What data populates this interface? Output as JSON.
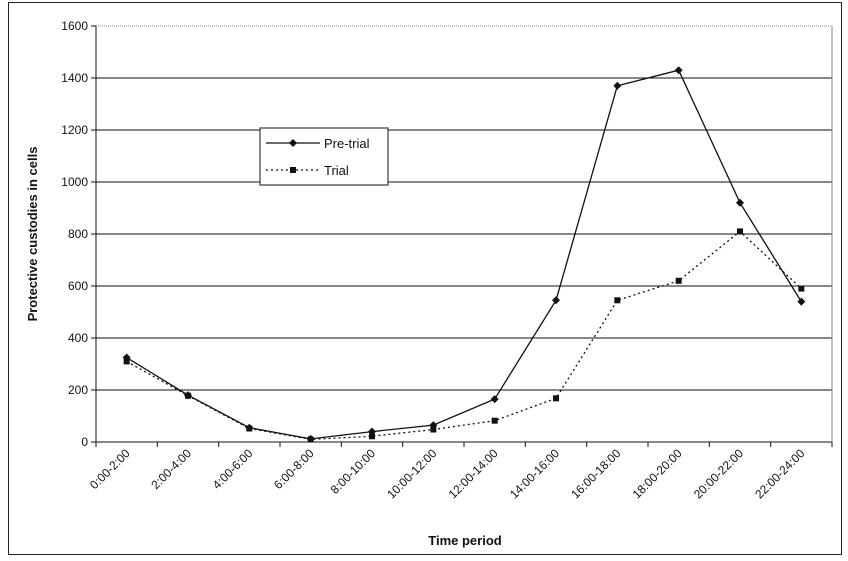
{
  "chart_data": {
    "type": "line",
    "title": "",
    "xlabel": "Time period",
    "ylabel": "Protective custodies in cells",
    "ylim": [
      0,
      1600
    ],
    "yticks": [
      0,
      200,
      400,
      600,
      800,
      1000,
      1200,
      1400,
      1600
    ],
    "ytick_labels": [
      "0",
      "200",
      "400",
      "600",
      "800",
      "1000",
      "1200",
      "1400",
      "1600"
    ],
    "grid": true,
    "legend_position": "upper-left-center",
    "categories": [
      "0:00-2:00",
      "2:00-4:00",
      "4:00-6:00",
      "6:00-8:00",
      "8:00-10:00",
      "10:00-12:00",
      "12:00-14:00",
      "14:00-16:00",
      "16:00-18:00",
      "18:00-20:00",
      "20:00-22:00",
      "22:00-24:00"
    ],
    "series": [
      {
        "name": "Pre-trial",
        "style": "solid",
        "marker": "diamond",
        "color": "#111111",
        "values": [
          325,
          180,
          55,
          12,
          40,
          65,
          165,
          545,
          1370,
          1430,
          920,
          540
        ]
      },
      {
        "name": "Trial",
        "style": "dotted",
        "marker": "square",
        "color": "#111111",
        "values": [
          310,
          178,
          52,
          10,
          22,
          48,
          82,
          168,
          545,
          620,
          810,
          590
        ]
      }
    ]
  }
}
